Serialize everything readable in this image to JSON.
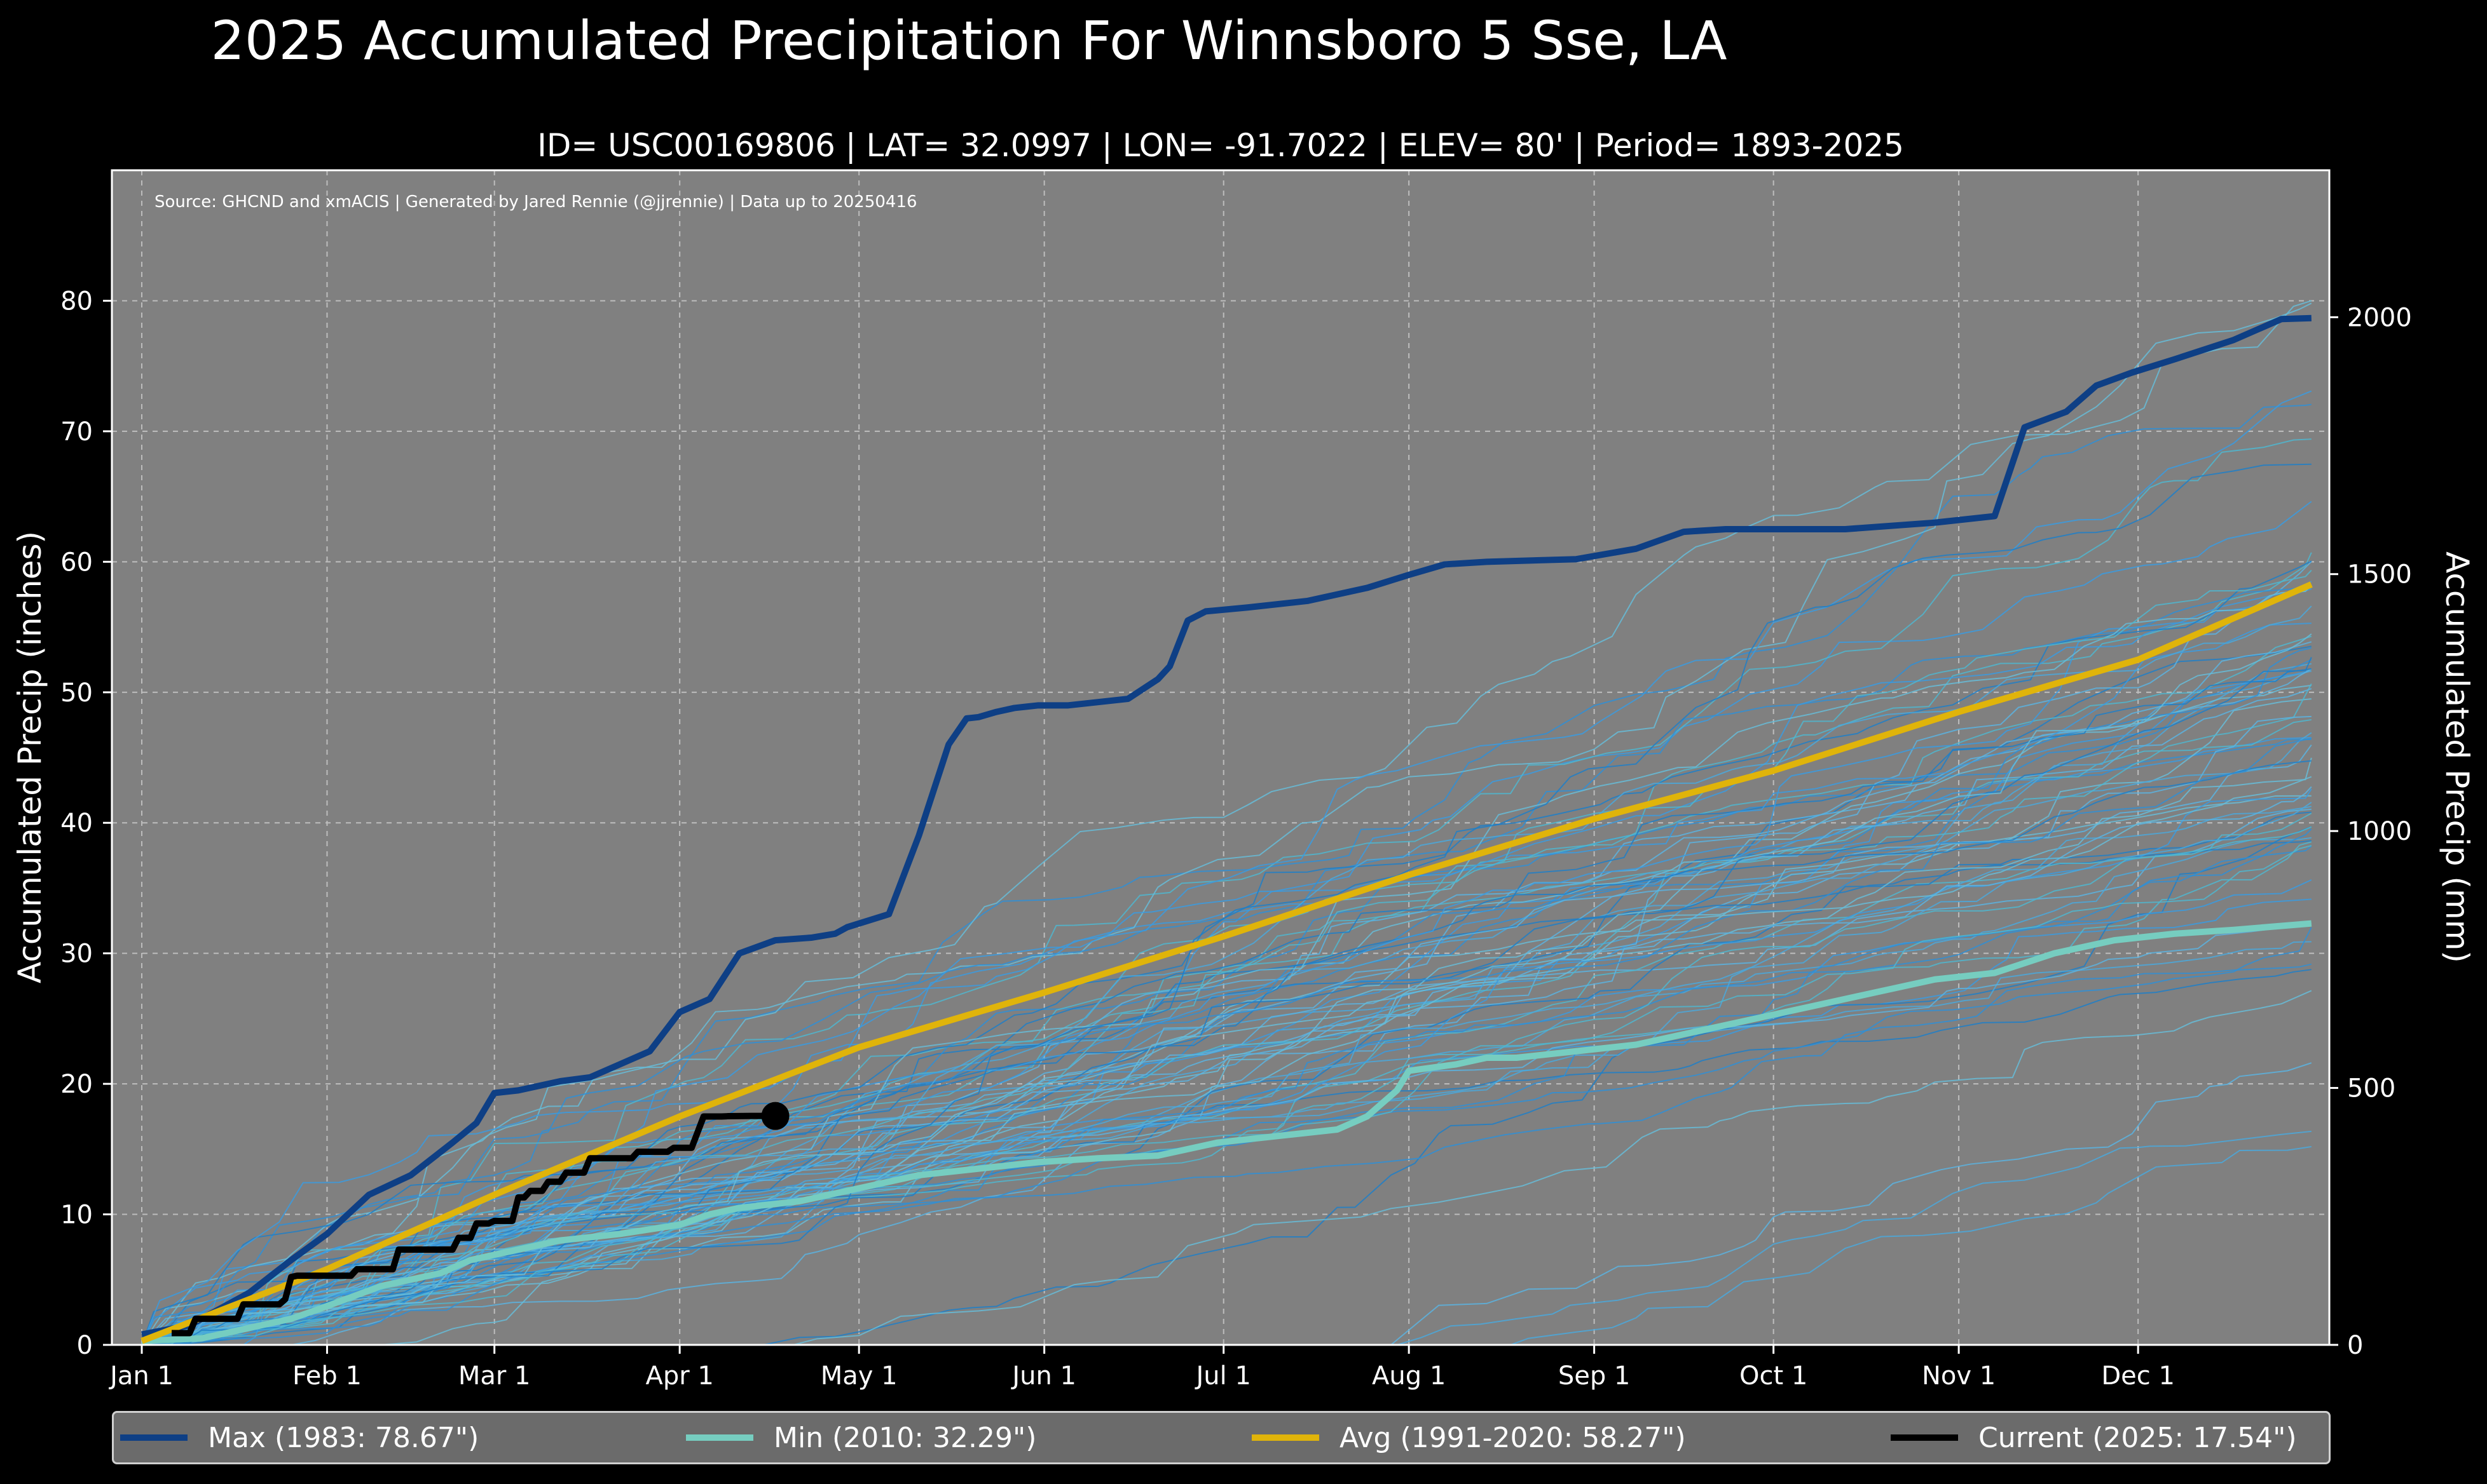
{
  "chart_data": {
    "type": "line",
    "title": "2025 Accumulated Precipitation For Winnsboro 5 Sse, LA",
    "subtitle": "ID= USC00169806 | LAT= 32.0997 | LON= -91.7022 | ELEV= 80' | Period= 1893-2025",
    "source": "Source: GHCND and xmACIS | Generated by Jared Rennie (@jjrennie) | Data up to 20250416",
    "ylabel_left": "Accumulated Precip (inches)",
    "ylabel_right": "Accumulated Precip (mm)",
    "x_unit": "day_of_year",
    "xlim": [
      -5,
      366
    ],
    "ylim": [
      0,
      90
    ],
    "grid": true,
    "x_ticks": [
      {
        "label": "Jan 1",
        "day": 0
      },
      {
        "label": "Feb 1",
        "day": 31
      },
      {
        "label": "Mar 1",
        "day": 59
      },
      {
        "label": "Apr 1",
        "day": 90
      },
      {
        "label": "May 1",
        "day": 120
      },
      {
        "label": "Jun 1",
        "day": 151
      },
      {
        "label": "Jul 1",
        "day": 181
      },
      {
        "label": "Aug 1",
        "day": 212
      },
      {
        "label": "Sep 1",
        "day": 243
      },
      {
        "label": "Oct 1",
        "day": 273
      },
      {
        "label": "Nov 1",
        "day": 304
      },
      {
        "label": "Dec 1",
        "day": 334
      }
    ],
    "y_ticks_left": [
      "0",
      "10",
      "20",
      "30",
      "40",
      "50",
      "60",
      "70",
      "80"
    ],
    "y_ticks_right": [
      {
        "label": "0",
        "mm": 0
      },
      {
        "label": "500",
        "mm": 500
      },
      {
        "label": "1000",
        "mm": 1000
      },
      {
        "label": "1500",
        "mm": 1500
      },
      {
        "label": "2000",
        "mm": 2000
      }
    ],
    "series": [
      {
        "name": "Max",
        "label": "Max (1983:  78.67\")",
        "color": "#0e3f85",
        "x": [
          0,
          8,
          18,
          25,
          31,
          38,
          45,
          52,
          56,
          59,
          63,
          70,
          75,
          80,
          85,
          90,
          95,
          100,
          106,
          112,
          116,
          118,
          125,
          130,
          135,
          138,
          140,
          143,
          146,
          148,
          150,
          155,
          165,
          170,
          172,
          175,
          178,
          185,
          195,
          205,
          212,
          218,
          225,
          240,
          250,
          258,
          265,
          273,
          285,
          300,
          310,
          315,
          322,
          327,
          333,
          340,
          350,
          358,
          363
        ],
        "values": [
          0.8,
          1.5,
          4.0,
          6.5,
          8.5,
          11.5,
          13.0,
          15.5,
          17.0,
          19.3,
          19.5,
          20.2,
          20.5,
          21.5,
          22.5,
          25.5,
          26.5,
          30.0,
          31.0,
          31.2,
          31.5,
          32.0,
          33.0,
          39.0,
          46.0,
          48.0,
          48.1,
          48.5,
          48.8,
          48.9,
          49.0,
          49.0,
          49.5,
          51.0,
          52.0,
          55.5,
          56.2,
          56.5,
          57.0,
          58.0,
          59.0,
          59.8,
          60.0,
          60.2,
          61.0,
          62.3,
          62.5,
          62.5,
          62.5,
          63.0,
          63.5,
          70.3,
          71.5,
          73.5,
          74.5,
          75.5,
          77.0,
          78.6,
          78.67
        ]
      },
      {
        "name": "Min",
        "label": "Min (2010:  32.29\")",
        "color": "#76cdc0",
        "x": [
          0,
          10,
          15,
          25,
          30,
          40,
          50,
          55,
          60,
          65,
          70,
          80,
          90,
          95,
          100,
          110,
          120,
          130,
          140,
          150,
          160,
          170,
          180,
          190,
          200,
          205,
          210,
          212,
          220,
          225,
          230,
          240,
          250,
          260,
          270,
          280,
          290,
          300,
          310,
          320,
          330,
          340,
          350,
          363
        ],
        "values": [
          0.3,
          0.5,
          1.0,
          2.0,
          2.8,
          4.5,
          5.5,
          6.5,
          7.0,
          7.5,
          8.0,
          8.5,
          9.2,
          10.0,
          10.5,
          11.0,
          12.0,
          13.0,
          13.5,
          14.0,
          14.3,
          14.5,
          15.5,
          16.0,
          16.5,
          17.5,
          19.5,
          21.0,
          21.5,
          22.0,
          22.0,
          22.5,
          23.0,
          24.0,
          25.0,
          26.0,
          27.0,
          28.0,
          28.5,
          30.0,
          31.0,
          31.5,
          31.8,
          32.29
        ]
      },
      {
        "name": "Avg",
        "label": "Avg (1991-2020:  58.27\")",
        "color": "#e0b40a",
        "x": [
          0,
          31,
          59,
          90,
          120,
          151,
          181,
          212,
          243,
          273,
          304,
          334,
          363
        ],
        "values": [
          0.3,
          5.8,
          11.5,
          17.5,
          22.8,
          27.0,
          31.3,
          36.0,
          40.3,
          44.0,
          48.5,
          52.5,
          58.27
        ]
      },
      {
        "name": "Current",
        "label": "Current (2025:  17.54\")",
        "color": "#000000",
        "x": [
          5,
          8,
          9,
          16,
          17,
          23,
          24,
          25,
          26,
          35,
          36,
          42,
          43,
          52,
          53,
          55,
          56,
          58,
          59,
          62,
          63,
          64,
          65,
          67,
          68,
          70,
          71,
          74,
          75,
          82,
          83,
          88,
          89,
          92,
          93,
          94,
          97,
          98,
          102,
          104,
          106
        ],
        "values": [
          0.9,
          0.9,
          2.0,
          2.0,
          3.1,
          3.1,
          3.5,
          5.2,
          5.3,
          5.3,
          5.8,
          5.8,
          7.3,
          7.3,
          8.2,
          8.2,
          9.3,
          9.3,
          9.5,
          9.5,
          11.3,
          11.3,
          11.8,
          11.8,
          12.5,
          12.5,
          13.2,
          13.2,
          14.3,
          14.3,
          14.8,
          14.8,
          15.1,
          15.1,
          16.3,
          17.5,
          17.5,
          17.52,
          17.54,
          17.54,
          17.54
        ],
        "marker_at_end": true
      }
    ]
  }
}
